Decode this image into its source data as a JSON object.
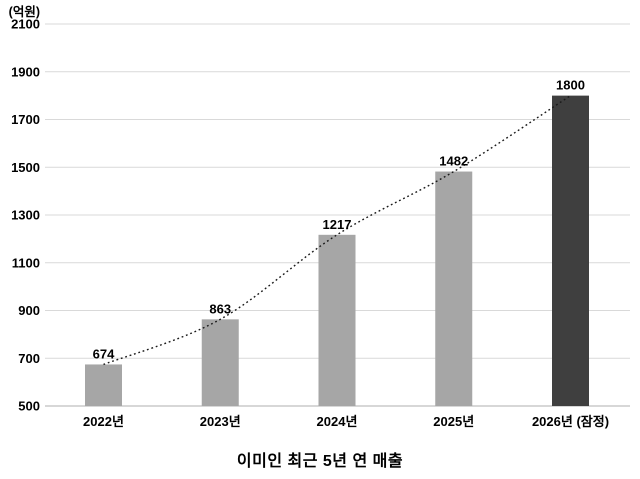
{
  "chart_data": {
    "type": "bar",
    "title": "이미인 최근 5년 연 매출",
    "unit_label": "(억원)",
    "categories": [
      "2022년",
      "2023년",
      "2024년",
      "2025년",
      "2026년 (잠정)"
    ],
    "values": [
      674,
      863,
      1217,
      1482,
      1800
    ],
    "value_labels": [
      "674",
      "863",
      "1217",
      "1482",
      "1800"
    ],
    "y_ticks": [
      2100,
      1900,
      1700,
      1500,
      1300,
      1100,
      900,
      700,
      500
    ],
    "ylim": [
      500,
      2100
    ],
    "xlabel": "",
    "ylabel": "(억원)",
    "grid": "horizontal",
    "legend": "none",
    "trendline": "dotted-curve-through-bar-tops",
    "colors": {
      "bar_default": "#a6a6a6",
      "bar_highlight": "#3f3f3f",
      "bar_fills": [
        "#a6a6a6",
        "#a6a6a6",
        "#a6a6a6",
        "#a6a6a6",
        "#3f3f3f"
      ],
      "gridline": "#d9d9d9",
      "baseline": "#bfbfbf",
      "text": "#000000",
      "trendline": "#1a1a1a",
      "background": "#ffffff"
    }
  }
}
